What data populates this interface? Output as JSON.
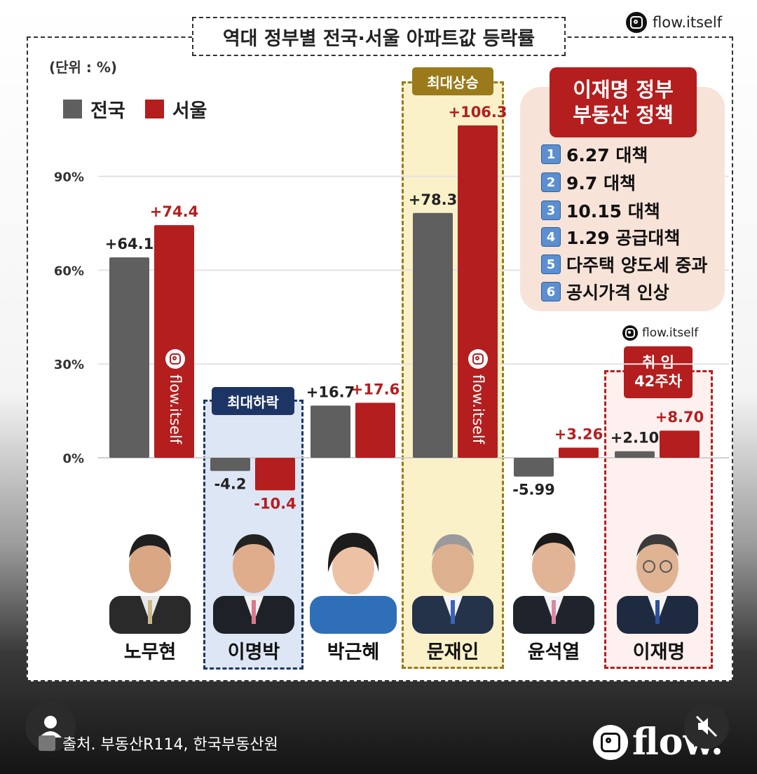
{
  "page_title": "역대 정부별 전국·서울 아파트값 등락률",
  "brand_top": "flow.itself",
  "unit_label": "(단위 : %)",
  "source": "출처. 부동산R114, 한국부동산원",
  "logo_text": "flow.",
  "watermark_text": "flow.itself",
  "highlights": {
    "max_rise": "최대상승",
    "max_fall": "최대하락",
    "current_line1": "취  임",
    "current_line2": "42주차"
  },
  "policy_box": {
    "title_line1": "이재명 정부",
    "title_line2": "부동산 정책",
    "items": [
      {
        "num": "1",
        "text": "6.27 대책"
      },
      {
        "num": "2",
        "text": "9.7 대책"
      },
      {
        "num": "3",
        "text": "10.15 대책"
      },
      {
        "num": "4",
        "text": "1.29 공급대책"
      },
      {
        "num": "5",
        "text": "다주택 양도세 중과"
      },
      {
        "num": "6",
        "text": "공시가격 인상"
      }
    ]
  },
  "colors": {
    "national": "#5f5f5f",
    "seoul": "#b41e1e",
    "navy": "#1d3564",
    "gold": "#9a7a1a"
  },
  "chart_data": {
    "type": "bar",
    "title": "역대 정부별 전국·서울 아파트값 등락률",
    "ylabel": "(단위 : %)",
    "yticks": [
      "90%",
      "60%",
      "30%",
      "0%"
    ],
    "ytick_values": [
      90,
      60,
      30,
      0
    ],
    "ylim": [
      -12,
      110
    ],
    "legend": "top-left",
    "categories": [
      "노무현",
      "이명박",
      "박근혜",
      "문재인",
      "윤석열",
      "이재명"
    ],
    "series": [
      {
        "name": "전국",
        "values": [
          64.1,
          -4.2,
          16.7,
          78.3,
          -5.99,
          2.1
        ],
        "labels": [
          "+64.1",
          "-4.2",
          "+16.7",
          "+78.3",
          "-5.99",
          "+2.10"
        ]
      },
      {
        "name": "서울",
        "values": [
          74.4,
          -10.4,
          17.6,
          106.3,
          3.26,
          8.7
        ],
        "labels": [
          "+74.4",
          "-10.4",
          "+17.6",
          "+106.3",
          "+3.26",
          "+8.70"
        ]
      }
    ]
  }
}
